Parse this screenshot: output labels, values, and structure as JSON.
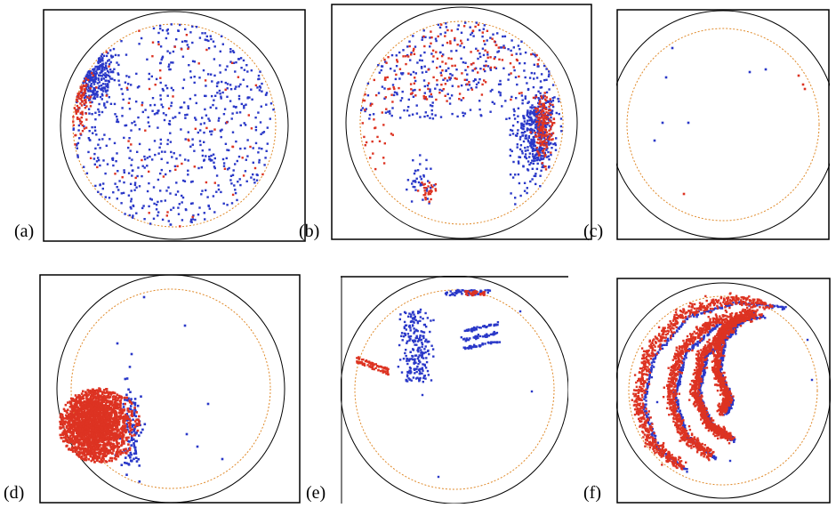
{
  "panels": [
    {
      "label": "(a)",
      "colors": {
        "frame": "#000000",
        "outer_circle": "#000000",
        "inner_circle": "#e08a2a",
        "blue": "#2233cc",
        "red": "#dd3322"
      }
    },
    {
      "label": "(b)"
    },
    {
      "label": "(c)"
    },
    {
      "label": "(d)"
    },
    {
      "label": "(e)"
    },
    {
      "label": "(f)"
    }
  ],
  "colors": {
    "frame": "#000000",
    "outer_circle": "#000000",
    "inner_circle": "#e08a2a",
    "blue": "#2a38c8",
    "red": "#dd3322"
  }
}
